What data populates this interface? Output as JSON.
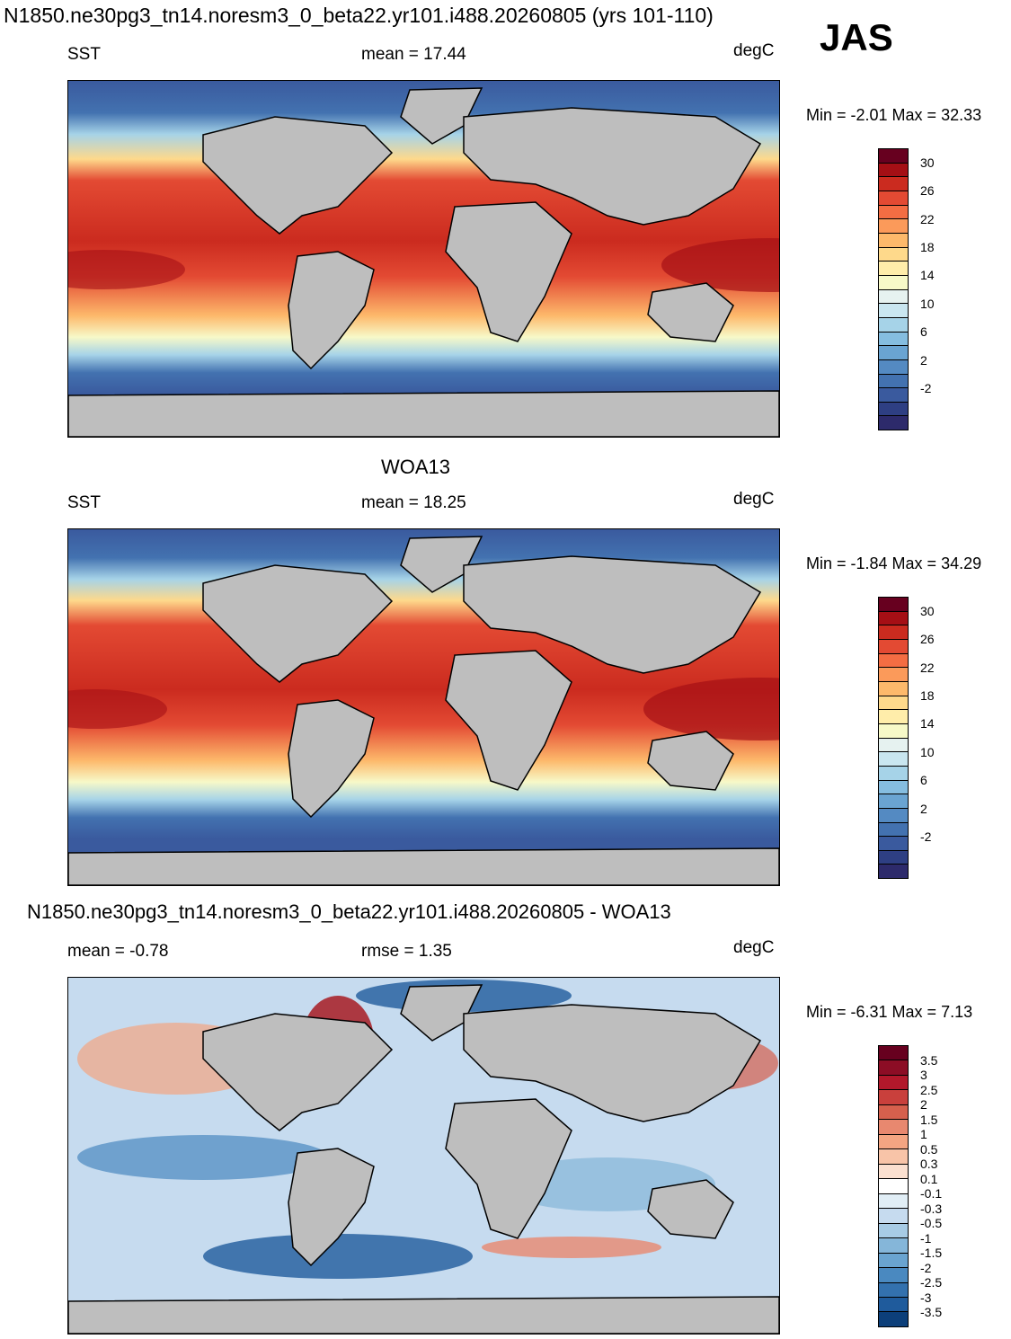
{
  "figure_title": "N1850.ne30pg3_tn14.noresm3_0_beta22.yr101.i488.20260805 (yrs 101-110)",
  "season": "JAS",
  "panels": [
    {
      "id": "model",
      "title": "",
      "left_label": "SST",
      "center_label": "mean =  17.44",
      "units": "degC",
      "minmax": "Min =  -2.01 Max =  32.33",
      "levels": [
        "30",
        "26",
        "22",
        "18",
        "14",
        "10",
        "6",
        "2",
        "-2"
      ],
      "colors": [
        "#67001f",
        "#a50f15",
        "#cb2b1f",
        "#e34a33",
        "#f46d43",
        "#fb9a5a",
        "#fdb96b",
        "#fed98b",
        "#ffedaa",
        "#f7f9c8",
        "#e6f2f0",
        "#c9e6f0",
        "#a6d3e8",
        "#85bde0",
        "#6aa4d2",
        "#548ac2",
        "#4372b0",
        "#3a5a9e",
        "#2e3f83",
        "#2d2a6b"
      ]
    },
    {
      "id": "obs",
      "title": "WOA13",
      "left_label": "SST",
      "center_label": "mean =  18.25",
      "units": "degC",
      "minmax": "Min =  -1.84 Max =  34.29",
      "levels": [
        "30",
        "26",
        "22",
        "18",
        "14",
        "10",
        "6",
        "2",
        "-2"
      ],
      "colors": [
        "#67001f",
        "#a50f15",
        "#cb2b1f",
        "#e34a33",
        "#f46d43",
        "#fb9a5a",
        "#fdb96b",
        "#fed98b",
        "#ffedaa",
        "#f7f9c8",
        "#e6f2f0",
        "#c9e6f0",
        "#a6d3e8",
        "#85bde0",
        "#6aa4d2",
        "#548ac2",
        "#4372b0",
        "#3a5a9e",
        "#2e3f83",
        "#2d2a6b"
      ]
    },
    {
      "id": "diff",
      "title": "N1850.ne30pg3_tn14.noresm3_0_beta22.yr101.i488.20260805 - WOA13",
      "left_label": "mean =  -0.78",
      "center_label": "rmse =    1.35",
      "units": "degC",
      "minmax": "Min =  -6.31 Max =    7.13",
      "levels": [
        "3.5",
        "3",
        "2.5",
        "2",
        "1.5",
        "1",
        "0.5",
        "0.3",
        "0.1",
        "-0.1",
        "-0.3",
        "-0.5",
        "-1",
        "-1.5",
        "-2",
        "-2.5",
        "-3",
        "-3.5"
      ],
      "colors": [
        "#67001f",
        "#8c0d25",
        "#b2182b",
        "#c9403c",
        "#d6604d",
        "#e8886f",
        "#f4a582",
        "#f8c4a8",
        "#fbe0d0",
        "#ffffff",
        "#e1eef6",
        "#c6dbef",
        "#a7cbe5",
        "#85b6d9",
        "#6aa4d0",
        "#4a89c0",
        "#3371ae",
        "#1f5b9c",
        "#0c3f7a"
      ]
    }
  ]
}
